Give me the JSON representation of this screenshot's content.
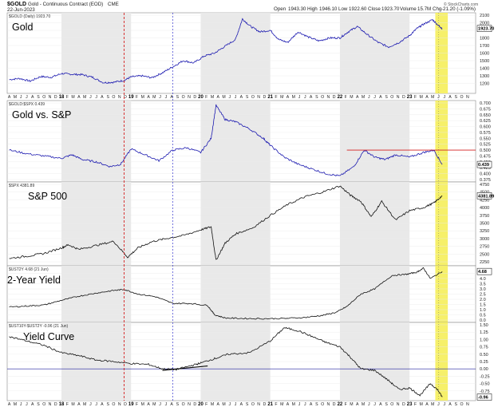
{
  "header": {
    "symbol": "$GOLD",
    "name": "Gold - Continuous Contract (EOD)",
    "exchange": "CME",
    "date": "22-Jun-2023",
    "open_label": "Open",
    "open": "1943.30",
    "high_label": "High",
    "high": "1946.10",
    "low_label": "Low",
    "low": "1922.60",
    "close_label": "Close",
    "close": "1923.70",
    "volume_label": "Volume",
    "volume": "15.7M",
    "chg_label": "Chg",
    "chg": "-21.20 (-1.09%)",
    "watermark": "© StockCharts.com"
  },
  "months": [
    "A",
    "M",
    "J",
    "J",
    "A",
    "S",
    "O",
    "N",
    "D",
    "18",
    "F",
    "M",
    "A",
    "M",
    "J",
    "J",
    "A",
    "S",
    "O",
    "N",
    "D",
    "19",
    "F",
    "M",
    "A",
    "M",
    "J",
    "J",
    "A",
    "S",
    "O",
    "N",
    "D",
    "20",
    "F",
    "M",
    "A",
    "M",
    "J",
    "J",
    "A",
    "S",
    "O",
    "N",
    "D",
    "21",
    "F",
    "M",
    "A",
    "M",
    "J",
    "J",
    "A",
    "S",
    "O",
    "N",
    "D",
    "22",
    "F",
    "M",
    "A",
    "M",
    "J",
    "J",
    "A",
    "S",
    "O",
    "N",
    "D",
    "23",
    "F",
    "M",
    "A",
    "M",
    "J",
    "J",
    "A",
    "S",
    "O",
    "N"
  ],
  "colors": {
    "gold_line": "#1c1ab0",
    "ratio_line": "#1c1ab0",
    "black_line": "#111111",
    "highlight": "#f6f06a",
    "red_vline": "#d42020",
    "blue_vline": "#3a3ad0",
    "resistance": "#d42020",
    "zero_line": "#2020a0",
    "shade": "#e9e9e9"
  },
  "chart_data": [
    {
      "type": "line",
      "big_label": "Gold",
      "legend": "$GOLD (Daily) 1923.70",
      "last_value": "1923.70",
      "ylim": [
        1100,
        2100
      ],
      "yticks": [
        "1200",
        "1300",
        "1400",
        "1500",
        "1600",
        "1700",
        "1800",
        "1900",
        "2000",
        "2100"
      ],
      "x": [
        2017.25,
        2017.4,
        2017.55,
        2017.7,
        2017.85,
        2018.0,
        2018.15,
        2018.3,
        2018.45,
        2018.6,
        2018.75,
        2018.9,
        2019.0,
        2019.15,
        2019.3,
        2019.45,
        2019.6,
        2019.75,
        2019.9,
        2020.05,
        2020.2,
        2020.35,
        2020.5,
        2020.6,
        2020.72,
        2020.85,
        2021.0,
        2021.12,
        2021.25,
        2021.4,
        2021.55,
        2021.7,
        2021.85,
        2022.0,
        2022.12,
        2022.25,
        2022.4,
        2022.55,
        2022.7,
        2022.85,
        2023.0,
        2023.1,
        2023.2,
        2023.33,
        2023.42,
        2023.47
      ],
      "values": [
        1250,
        1265,
        1230,
        1290,
        1280,
        1330,
        1320,
        1315,
        1280,
        1210,
        1215,
        1240,
        1285,
        1300,
        1275,
        1340,
        1420,
        1500,
        1470,
        1560,
        1600,
        1690,
        1780,
        2050,
        1950,
        1880,
        1900,
        1780,
        1740,
        1880,
        1810,
        1760,
        1800,
        1800,
        1880,
        1950,
        1840,
        1740,
        1680,
        1740,
        1830,
        1920,
        1980,
        2040,
        1960,
        1924
      ]
    },
    {
      "type": "line",
      "big_label": "Gold vs. S&P",
      "legend": "$GOLD:$SPX 0.439",
      "last_value": "0.439",
      "ylim": [
        0.375,
        0.7
      ],
      "yticks": [
        "0.375",
        "0.400",
        "0.425",
        "0.450",
        "0.475",
        "0.500",
        "0.525",
        "0.550",
        "0.575",
        "0.600",
        "0.625",
        "0.650",
        "0.675",
        "0.700"
      ],
      "x": [
        2017.25,
        2017.5,
        2017.75,
        2018.0,
        2018.15,
        2018.3,
        2018.5,
        2018.7,
        2018.85,
        2019.0,
        2019.2,
        2019.4,
        2019.6,
        2019.8,
        2020.0,
        2020.15,
        2020.22,
        2020.35,
        2020.5,
        2020.7,
        2020.9,
        2021.0,
        2021.2,
        2021.4,
        2021.6,
        2021.8,
        2022.0,
        2022.2,
        2022.35,
        2022.5,
        2022.65,
        2022.8,
        2023.0,
        2023.2,
        2023.35,
        2023.47
      ],
      "values": [
        0.5,
        0.485,
        0.475,
        0.465,
        0.48,
        0.46,
        0.45,
        0.43,
        0.44,
        0.505,
        0.48,
        0.455,
        0.5,
        0.51,
        0.49,
        0.55,
        0.69,
        0.63,
        0.62,
        0.59,
        0.55,
        0.52,
        0.47,
        0.44,
        0.42,
        0.4,
        0.39,
        0.43,
        0.5,
        0.47,
        0.46,
        0.48,
        0.47,
        0.49,
        0.5,
        0.439
      ]
    },
    {
      "type": "line",
      "big_label": "S&P 500",
      "legend": "$SPX 4381.89",
      "last_value": "4381.89",
      "ylim": [
        2200,
        4750
      ],
      "yticks": [
        "2250",
        "2500",
        "2750",
        "3000",
        "3250",
        "3500",
        "3750",
        "4000",
        "4250",
        "4500",
        "4750"
      ],
      "x": [
        2017.25,
        2017.5,
        2017.75,
        2018.0,
        2018.1,
        2018.25,
        2018.5,
        2018.75,
        2018.95,
        2019.1,
        2019.3,
        2019.5,
        2019.75,
        2020.0,
        2020.15,
        2020.22,
        2020.35,
        2020.5,
        2020.75,
        2021.0,
        2021.25,
        2021.5,
        2021.75,
        2022.0,
        2022.15,
        2022.3,
        2022.45,
        2022.6,
        2022.8,
        2023.0,
        2023.2,
        2023.35,
        2023.47
      ],
      "values": [
        2360,
        2430,
        2520,
        2700,
        2800,
        2650,
        2780,
        2910,
        2400,
        2700,
        2900,
        3000,
        3100,
        3280,
        3380,
        2300,
        2850,
        3150,
        3350,
        3750,
        4100,
        4350,
        4500,
        4700,
        4400,
        4200,
        3700,
        4200,
        3600,
        3900,
        4000,
        4150,
        4382
      ]
    },
    {
      "type": "line",
      "big_label": "2-Year Yield",
      "legend": "$UST2Y 4.68 (21 Jun)",
      "last_value": "4.68",
      "ylim": [
        0,
        5
      ],
      "yticks": [
        "0.0",
        "0.5",
        "1.0",
        "1.5",
        "2.0",
        "2.5",
        "3.0",
        "3.5",
        "4.0",
        "4.5"
      ],
      "x": [
        2017.25,
        2017.5,
        2017.75,
        2018.0,
        2018.25,
        2018.5,
        2018.75,
        2018.9,
        2019.1,
        2019.35,
        2019.6,
        2019.85,
        2020.1,
        2020.2,
        2020.35,
        2020.6,
        2020.9,
        2021.2,
        2021.5,
        2021.75,
        2021.95,
        2022.1,
        2022.3,
        2022.5,
        2022.75,
        2022.95,
        2023.1,
        2023.2,
        2023.3,
        2023.47
      ],
      "values": [
        1.25,
        1.35,
        1.45,
        1.9,
        2.3,
        2.6,
        2.85,
        2.95,
        2.5,
        2.25,
        1.6,
        1.6,
        1.4,
        0.5,
        0.2,
        0.15,
        0.13,
        0.15,
        0.25,
        0.45,
        0.75,
        1.3,
        2.5,
        3.0,
        4.3,
        4.4,
        4.6,
        5.0,
        4.0,
        4.68
      ]
    },
    {
      "type": "line",
      "big_label": "Yield Curve",
      "legend": "$UST10Y-$UST2Y -0.96 (21 Jun)",
      "last_value": "-0.96",
      "ylim": [
        -1.0,
        1.5
      ],
      "yticks": [
        "-0.75",
        "-0.50",
        "-0.25",
        "0.00",
        "0.25",
        "0.50",
        "0.75",
        "1.00",
        "1.25",
        "1.50"
      ],
      "zero_label": "0.00",
      "x": [
        2017.25,
        2017.5,
        2017.75,
        2018.0,
        2018.25,
        2018.5,
        2018.75,
        2019.0,
        2019.25,
        2019.45,
        2019.65,
        2019.85,
        2020.0,
        2020.2,
        2020.4,
        2020.7,
        2021.0,
        2021.2,
        2021.4,
        2021.6,
        2021.8,
        2022.0,
        2022.15,
        2022.3,
        2022.5,
        2022.7,
        2022.85,
        2023.0,
        2023.15,
        2023.3,
        2023.4,
        2023.47
      ],
      "values": [
        1.1,
        0.95,
        0.8,
        0.55,
        0.45,
        0.3,
        0.25,
        0.18,
        0.15,
        0.0,
        -0.02,
        0.1,
        0.2,
        0.35,
        0.5,
        0.55,
        0.95,
        1.4,
        1.3,
        1.1,
        0.9,
        0.75,
        0.4,
        0.0,
        -0.05,
        -0.4,
        -0.7,
        -0.65,
        -0.9,
        -0.5,
        -0.7,
        -0.96
      ]
    }
  ]
}
